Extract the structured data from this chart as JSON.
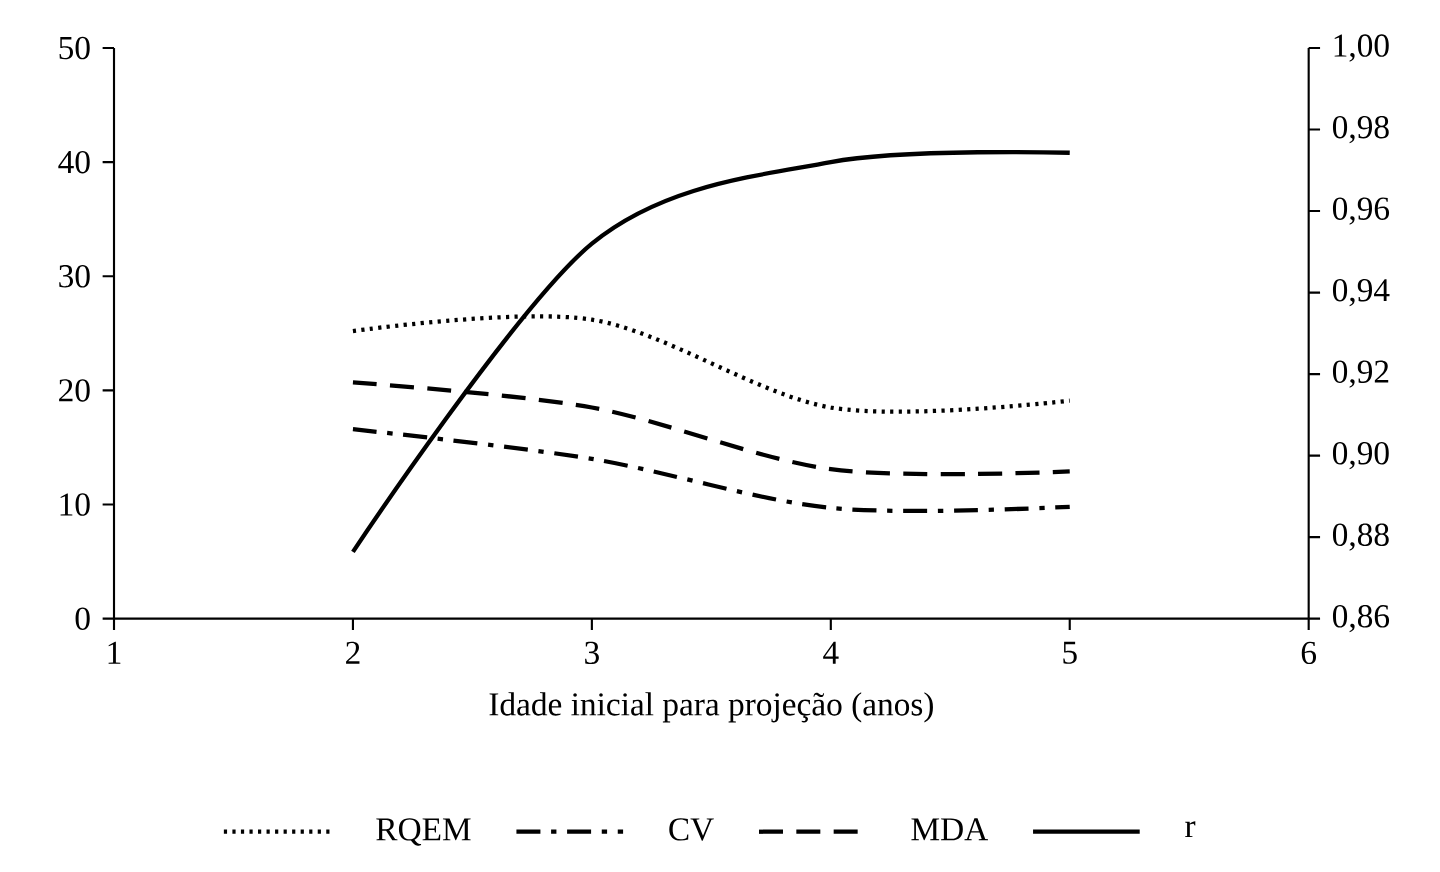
{
  "chart_data": {
    "type": "line",
    "xlabel": "Idade inicial para projeção (anos)",
    "x": [
      2,
      3,
      4,
      5
    ],
    "series": [
      {
        "name": "RQEM",
        "color": "#000000",
        "line_style": "dotted",
        "values": [
          25.2,
          26.2,
          18.5,
          19.1
        ]
      },
      {
        "name": "CV",
        "color": "#000000",
        "line_style": "dashdot",
        "values": [
          16.6,
          14.0,
          9.7,
          9.8
        ]
      },
      {
        "name": "MDA",
        "color": "#000000",
        "line_style": "dashed",
        "values": [
          20.7,
          18.5,
          13.1,
          12.9
        ]
      },
      {
        "name": "r",
        "color": "#000000",
        "line_style": "solid",
        "axis": "y2",
        "values": [
          0.8764,
          0.952,
          0.972,
          0.9743
        ]
      }
    ],
    "xlim": [
      1,
      6
    ],
    "xticks": [
      1,
      2,
      3,
      4,
      5,
      6
    ],
    "ylim": [
      0,
      50
    ],
    "yticks": [
      0,
      10,
      20,
      30,
      40,
      50
    ],
    "y2lim": [
      0.86,
      1.0
    ],
    "y2ticks": [
      {
        "value": 0.86,
        "label": "0,86"
      },
      {
        "value": 0.88,
        "label": "0,88"
      },
      {
        "value": 0.9,
        "label": "0,90"
      },
      {
        "value": 0.92,
        "label": "0,92"
      },
      {
        "value": 0.94,
        "label": "0,94"
      },
      {
        "value": 0.96,
        "label": "0,96"
      },
      {
        "value": 0.98,
        "label": "0,98"
      },
      {
        "value": 1.0,
        "label": "1,00"
      }
    ],
    "grid": false,
    "legend": "bottom",
    "marker": "none"
  }
}
